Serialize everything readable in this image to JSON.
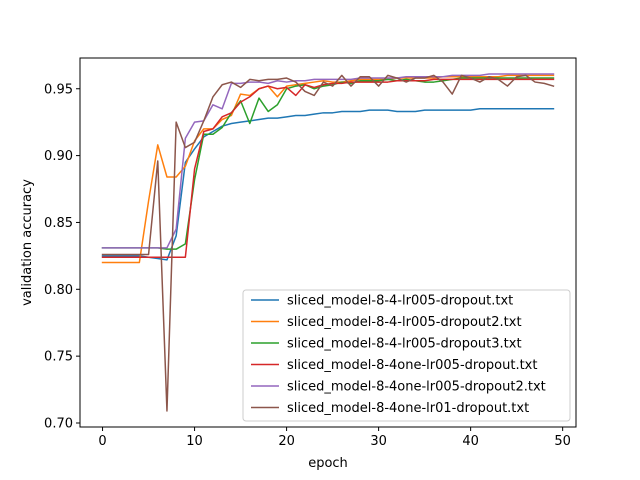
{
  "chart_data": {
    "type": "line",
    "xlabel": "epoch",
    "ylabel": "validation accuracy",
    "xlim": [
      -2.45,
      51.45
    ],
    "ylim": [
      0.697,
      0.973
    ],
    "xticks": [
      0,
      10,
      20,
      30,
      40,
      50
    ],
    "yticks": [
      0.7,
      0.75,
      0.8,
      0.85,
      0.9,
      0.95
    ],
    "ytick_labels": [
      "0.70",
      "0.75",
      "0.80",
      "0.85",
      "0.90",
      "0.95"
    ],
    "legend_position": "lower right",
    "x": [
      0,
      1,
      2,
      3,
      4,
      5,
      6,
      7,
      8,
      9,
      10,
      11,
      12,
      13,
      14,
      15,
      16,
      17,
      18,
      19,
      20,
      21,
      22,
      23,
      24,
      25,
      26,
      27,
      28,
      29,
      30,
      31,
      32,
      33,
      34,
      35,
      36,
      37,
      38,
      39,
      40,
      41,
      42,
      43,
      44,
      45,
      46,
      47,
      48,
      49
    ],
    "series": [
      {
        "name": "sliced_model-8-4-lr005-dropout.txt",
        "color": "#1f77b4",
        "values": [
          0.825,
          0.825,
          0.825,
          0.825,
          0.825,
          0.824,
          0.823,
          0.822,
          0.84,
          0.895,
          0.905,
          0.914,
          0.918,
          0.922,
          0.924,
          0.925,
          0.926,
          0.927,
          0.928,
          0.928,
          0.929,
          0.93,
          0.93,
          0.931,
          0.932,
          0.932,
          0.933,
          0.933,
          0.933,
          0.934,
          0.934,
          0.934,
          0.933,
          0.933,
          0.933,
          0.934,
          0.934,
          0.934,
          0.934,
          0.934,
          0.934,
          0.935,
          0.935,
          0.935,
          0.935,
          0.935,
          0.935,
          0.935,
          0.935,
          0.935
        ]
      },
      {
        "name": "sliced_model-8-4-lr005-dropout2.txt",
        "color": "#ff7f0e",
        "values": [
          0.82,
          0.82,
          0.82,
          0.82,
          0.82,
          0.866,
          0.908,
          0.884,
          0.884,
          0.892,
          0.911,
          0.92,
          0.92,
          0.927,
          0.93,
          0.946,
          0.945,
          0.95,
          0.952,
          0.944,
          0.952,
          0.953,
          0.954,
          0.955,
          0.956,
          0.955,
          0.955,
          0.956,
          0.957,
          0.957,
          0.957,
          0.957,
          0.958,
          0.958,
          0.958,
          0.958,
          0.958,
          0.959,
          0.959,
          0.959,
          0.959,
          0.959,
          0.959,
          0.959,
          0.96,
          0.96,
          0.96,
          0.96,
          0.96,
          0.96
        ]
      },
      {
        "name": "sliced_model-8-4-lr005-dropout3.txt",
        "color": "#2ca02c",
        "values": [
          0.831,
          0.831,
          0.831,
          0.831,
          0.831,
          0.831,
          0.831,
          0.83,
          0.83,
          0.834,
          0.882,
          0.916,
          0.916,
          0.921,
          0.932,
          0.941,
          0.924,
          0.943,
          0.933,
          0.938,
          0.95,
          0.952,
          0.953,
          0.95,
          0.952,
          0.953,
          0.955,
          0.954,
          0.956,
          0.956,
          0.956,
          0.957,
          0.956,
          0.957,
          0.956,
          0.955,
          0.955,
          0.956,
          0.957,
          0.958,
          0.958,
          0.958,
          0.958,
          0.958,
          0.958,
          0.958,
          0.958,
          0.958,
          0.958,
          0.958
        ]
      },
      {
        "name": "sliced_model-8-4one-lr005-dropout.txt",
        "color": "#d62728",
        "values": [
          0.824,
          0.824,
          0.824,
          0.824,
          0.824,
          0.824,
          0.824,
          0.824,
          0.824,
          0.824,
          0.89,
          0.918,
          0.92,
          0.929,
          0.932,
          0.94,
          0.944,
          0.95,
          0.952,
          0.95,
          0.951,
          0.945,
          0.953,
          0.951,
          0.953,
          0.954,
          0.954,
          0.955,
          0.955,
          0.955,
          0.955,
          0.955,
          0.956,
          0.956,
          0.956,
          0.956,
          0.957,
          0.957,
          0.957,
          0.957,
          0.957,
          0.957,
          0.957,
          0.957,
          0.957,
          0.957,
          0.957,
          0.957,
          0.957,
          0.957
        ]
      },
      {
        "name": "sliced_model-8-4one-lr005-dropout2.txt",
        "color": "#9467bd",
        "values": [
          0.831,
          0.831,
          0.831,
          0.831,
          0.831,
          0.831,
          0.831,
          0.831,
          0.845,
          0.913,
          0.925,
          0.926,
          0.938,
          0.935,
          0.954,
          0.954,
          0.955,
          0.955,
          0.954,
          0.956,
          0.955,
          0.956,
          0.956,
          0.957,
          0.957,
          0.957,
          0.957,
          0.957,
          0.958,
          0.958,
          0.958,
          0.958,
          0.958,
          0.959,
          0.959,
          0.959,
          0.959,
          0.959,
          0.96,
          0.96,
          0.96,
          0.96,
          0.961,
          0.961,
          0.961,
          0.961,
          0.961,
          0.961,
          0.961,
          0.961
        ]
      },
      {
        "name": "sliced_model-8-4one-lr01-dropout.txt",
        "color": "#8c564b",
        "values": [
          0.826,
          0.826,
          0.826,
          0.826,
          0.826,
          0.826,
          0.896,
          0.709,
          0.925,
          0.906,
          0.91,
          0.926,
          0.944,
          0.953,
          0.955,
          0.951,
          0.957,
          0.956,
          0.957,
          0.957,
          0.958,
          0.955,
          0.948,
          0.945,
          0.955,
          0.952,
          0.96,
          0.952,
          0.959,
          0.959,
          0.952,
          0.96,
          0.958,
          0.955,
          0.958,
          0.958,
          0.96,
          0.955,
          0.946,
          0.96,
          0.958,
          0.955,
          0.959,
          0.957,
          0.952,
          0.959,
          0.96,
          0.955,
          0.954,
          0.952
        ]
      }
    ]
  }
}
